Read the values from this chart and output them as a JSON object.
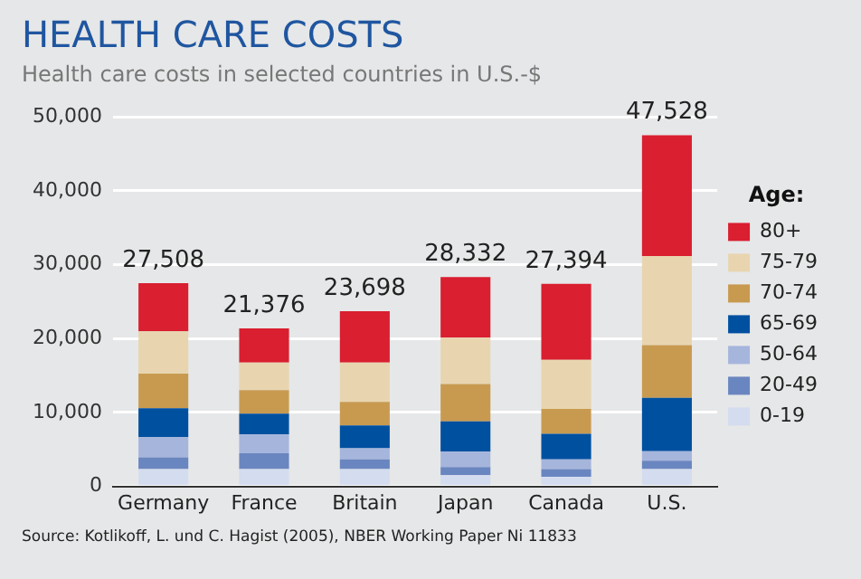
{
  "chart_data": {
    "type": "bar",
    "title": "HEALTH CARE COSTS",
    "subtitle": "Health care costs in selected countries in U.S.-$",
    "categories": [
      "Germany",
      "France",
      "Britain",
      "Japan",
      "Canada",
      "U.S."
    ],
    "stacked": true,
    "legend": "right",
    "legend_title": "Age:",
    "grid": "y",
    "ylim": [
      0,
      50000
    ],
    "yticks": [
      {
        "value": 0,
        "label": "0"
      },
      {
        "value": 10000,
        "label": "10,000"
      },
      {
        "value": 20000,
        "label": "20,000"
      },
      {
        "value": 30000,
        "label": "30,000"
      },
      {
        "value": 40000,
        "label": "40,000"
      },
      {
        "value": 50000,
        "label": "50,000"
      }
    ],
    "series": [
      {
        "name": "0-19",
        "color": "#d4dcef",
        "values": [
          2340,
          2340,
          2340,
          1500,
          1310,
          2340
        ]
      },
      {
        "name": "20-49",
        "color": "#6a86c0",
        "values": [
          1590,
          2150,
          1310,
          1120,
          1030,
          1120
        ]
      },
      {
        "name": "50-64",
        "color": "#a6b5dc",
        "values": [
          2720,
          2530,
          1500,
          2060,
          1310,
          1310
        ]
      },
      {
        "name": "65-69",
        "color": "#0050a0",
        "values": [
          3930,
          2810,
          3090,
          4120,
          3460,
          7210
        ]
      },
      {
        "name": "70-74",
        "color": "#c89a50",
        "values": [
          4680,
          3180,
          3180,
          5060,
          3370,
          7120
        ]
      },
      {
        "name": "75-79",
        "color": "#e8d5b0",
        "values": [
          5710,
          3750,
          5340,
          6270,
          6650,
          12080
        ]
      },
      {
        "name": "80+",
        "color": "#d91f30",
        "values": [
          6538,
          4616,
          6938,
          8202,
          10264,
          16348
        ]
      }
    ],
    "totals": [
      "27,508",
      "21,376",
      "23,698",
      "28,332",
      "27,394",
      "47,528"
    ],
    "annotations": [
      "Source: Kotlikoff, L. und C. Hagist (2005), NBER Working Paper Ni  11833"
    ]
  }
}
